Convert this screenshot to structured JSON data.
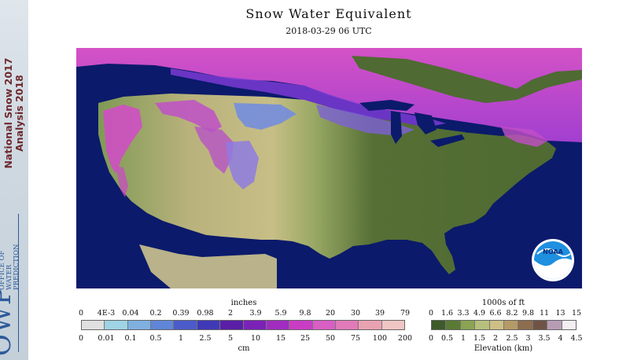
{
  "banner": {
    "line1": "National Snow 2017",
    "line2": "Analysis 2018",
    "org_word": "OWP",
    "org_sub": [
      "OFFICE OF",
      "WATER",
      "PREDICTION"
    ]
  },
  "header": {
    "title": "Snow Water Equivalent",
    "timestamp": "2018-03-29 06 UTC"
  },
  "map": {
    "logo_text": "NOAA",
    "colors": {
      "ocean": "#0b1a6b",
      "lake": "#0b1a6b",
      "deep_snow": "#d64fc8",
      "snow_purple": "#8a3fd6",
      "snow_blue": "#6b7fe0"
    }
  },
  "swe_legend": {
    "unit_top": "inches",
    "unit_bottom": "cm",
    "inch_ticks": [
      "0",
      "4E-3",
      "0.04",
      "0.2",
      "0.39",
      "0.98",
      "2",
      "3.9",
      "5.9",
      "9.8",
      "20",
      "30",
      "39",
      "79"
    ],
    "cm_ticks": [
      "0",
      "0.01",
      "0.1",
      "0.5",
      "1",
      "2.5",
      "5",
      "10",
      "15",
      "25",
      "50",
      "75",
      "100",
      "200"
    ],
    "colors": [
      "#e0e0e0",
      "#9fd3e6",
      "#7fb0e0",
      "#5f86d8",
      "#4b5bc9",
      "#3f39b8",
      "#5a1fa6",
      "#7a22b8",
      "#a02cc0",
      "#c93dc4",
      "#d95fc4",
      "#e07ab8",
      "#e9a2b2",
      "#efc6c4"
    ]
  },
  "elev_legend": {
    "unit_top": "1000s of ft",
    "unit_bottom": "Elevation (km)",
    "ft_ticks": [
      "0",
      "1.6",
      "3.3",
      "4.9",
      "6.6",
      "8.2",
      "9.8",
      "11",
      "13",
      "15"
    ],
    "km_ticks": [
      "0",
      "0.5",
      "1",
      "1.5",
      "2",
      "2.5",
      "3",
      "3.5",
      "4",
      "4.5"
    ],
    "colors": [
      "#3e5a2a",
      "#5a7a35",
      "#8aa452",
      "#b7c07a",
      "#cdbf86",
      "#b59a66",
      "#8c6d4e",
      "#6f5445",
      "#b89cb6",
      "#f2eef2"
    ]
  }
}
